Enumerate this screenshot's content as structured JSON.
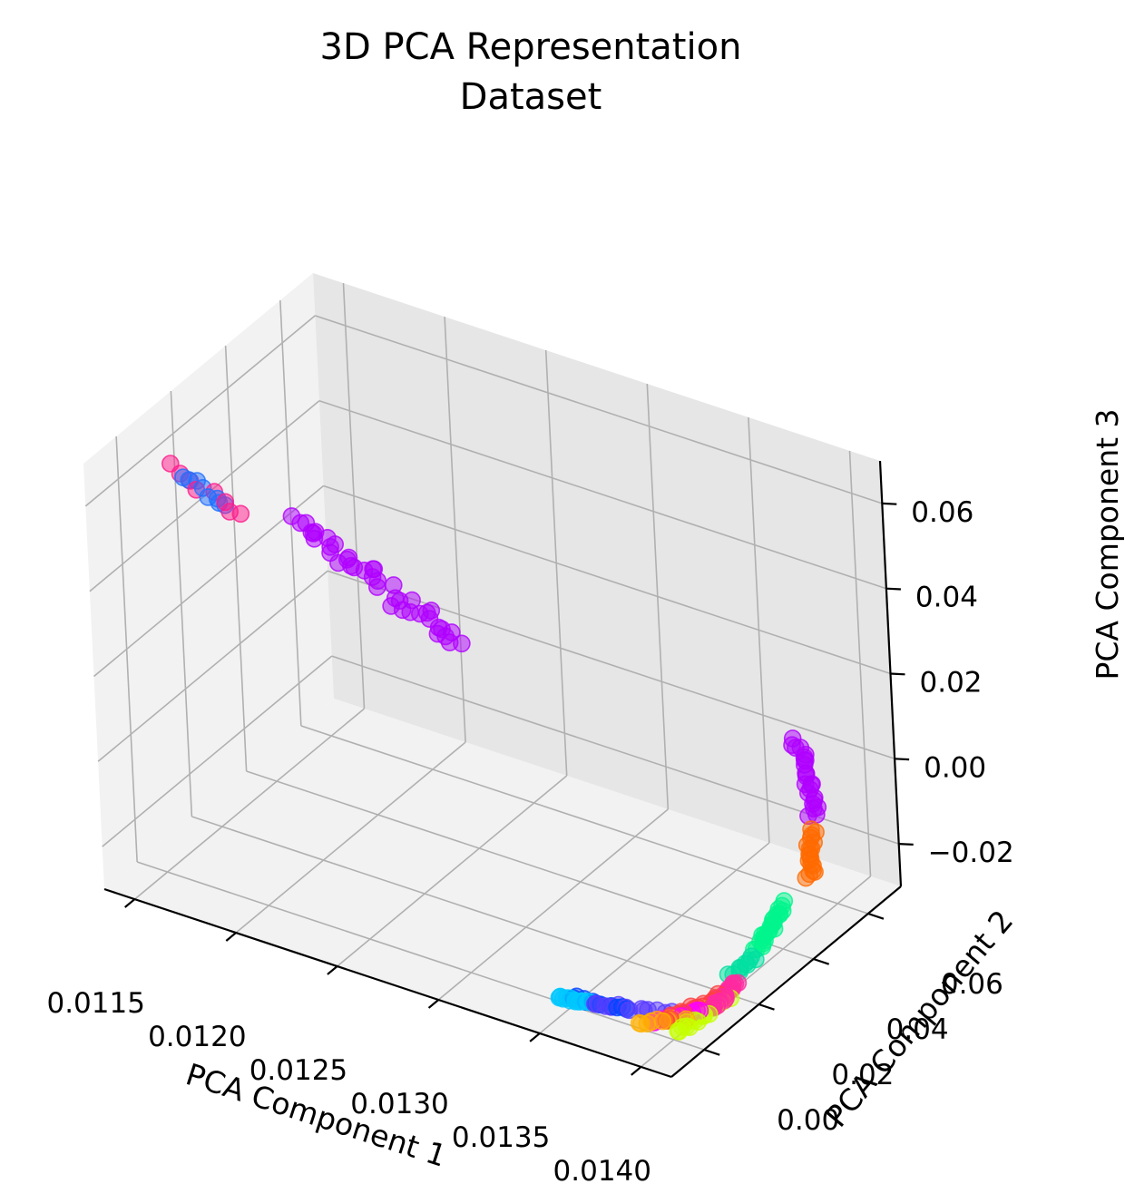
{
  "chart_data": {
    "type": "scatter",
    "title": "3D PCA Representation",
    "subtitle": "Dataset",
    "xlabel": "PCA Component 1",
    "ylabel": "PCA Component 2",
    "zlabel": "PCA Component 3",
    "xticks": [
      "0.0115",
      "0.0120",
      "0.0125",
      "0.0130",
      "0.0135",
      "0.0140"
    ],
    "yticks": [
      "0.00",
      "0.02",
      "0.04",
      "0.06"
    ],
    "zticks": [
      "−0.02",
      "0.00",
      "0.02",
      "0.04",
      "0.06"
    ],
    "xlim": [
      0.01135,
      0.01415
    ],
    "ylim": [
      -0.012,
      0.072
    ],
    "zlim": [
      -0.03,
      0.07
    ],
    "grid": true,
    "legend": null,
    "marker_alpha": 0.5,
    "clusters": [
      {
        "color": "#b000ff",
        "n": 40,
        "start": [
          0.01225,
          -0.002,
          0.066
        ],
        "end": [
          0.01298,
          0.003,
          0.045
        ],
        "spread": [
          4e-05,
          0.002,
          0.0012
        ]
      },
      {
        "color": "#ff1a8c",
        "n": 8,
        "start": [
          0.01166,
          -0.004,
          0.07
        ],
        "end": [
          0.012,
          -0.002,
          0.063
        ],
        "spread": [
          3e-05,
          0.001,
          0.0008
        ]
      },
      {
        "color": "#1f6fff",
        "n": 8,
        "start": [
          0.01172,
          -0.004,
          0.069
        ],
        "end": [
          0.01192,
          -0.003,
          0.064
        ],
        "spread": [
          3e-05,
          0.001,
          0.0008
        ]
      },
      {
        "color": "#b000ff",
        "n": 24,
        "start": [
          0.01395,
          0.052,
          0.012
        ],
        "end": [
          0.0141,
          0.047,
          -0.001
        ],
        "spread": [
          3e-05,
          0.0012,
          0.0008
        ]
      },
      {
        "color": "#ff6a00",
        "n": 18,
        "start": [
          0.01408,
          0.046,
          -0.004
        ],
        "end": [
          0.01413,
          0.042,
          -0.012
        ],
        "spread": [
          2e-05,
          0.0008,
          0.0006
        ]
      },
      {
        "color": "#00f58c",
        "n": 24,
        "start": [
          0.01412,
          0.033,
          -0.014
        ],
        "end": [
          0.01414,
          0.021,
          -0.018
        ],
        "spread": [
          2e-05,
          0.0007,
          0.0004
        ]
      },
      {
        "color": "#ff2aa0",
        "n": 26,
        "start": [
          0.01411,
          0.006,
          -0.024
        ],
        "end": [
          0.01413,
          0.014,
          -0.022
        ],
        "spread": [
          2e-05,
          0.0006,
          0.0005
        ]
      },
      {
        "color": "#ff4040",
        "n": 16,
        "start": [
          0.01398,
          -0.001,
          -0.025
        ],
        "end": [
          0.01412,
          0.009,
          -0.023
        ],
        "spread": [
          2e-05,
          0.0006,
          0.0004
        ]
      },
      {
        "color": "#ff00ff",
        "n": 14,
        "start": [
          0.01392,
          -0.002,
          -0.026
        ],
        "end": [
          0.01408,
          0.004,
          -0.024
        ],
        "spread": [
          2e-05,
          0.0006,
          0.0004
        ]
      },
      {
        "color": "#ffb000",
        "n": 14,
        "start": [
          0.01388,
          -0.004,
          -0.026
        ],
        "end": [
          0.01404,
          0.002,
          -0.025
        ],
        "spread": [
          2e-05,
          0.0006,
          0.0004
        ]
      },
      {
        "color": "#5a3cff",
        "n": 14,
        "start": [
          0.01366,
          -0.004,
          -0.025
        ],
        "end": [
          0.014,
          0.002,
          -0.025
        ],
        "spread": [
          2e-05,
          0.0006,
          0.0004
        ]
      },
      {
        "color": "#0044ff",
        "n": 12,
        "start": [
          0.01356,
          -0.004,
          -0.025
        ],
        "end": [
          0.0138,
          -0.002,
          -0.025
        ],
        "spread": [
          2e-05,
          0.0005,
          0.0004
        ]
      },
      {
        "color": "#00c8ff",
        "n": 14,
        "start": [
          0.0135,
          -0.005,
          -0.025
        ],
        "end": [
          0.01364,
          -0.004,
          -0.025
        ],
        "spread": [
          1e-05,
          0.0005,
          0.0003
        ]
      },
      {
        "color": "#c6ff00",
        "n": 22,
        "start": [
          0.01404,
          -0.001,
          -0.027
        ],
        "end": [
          0.01413,
          0.011,
          -0.024
        ],
        "spread": [
          2e-05,
          0.0008,
          0.0005
        ]
      },
      {
        "color": "#00e0a0",
        "n": 10,
        "start": [
          0.0141,
          0.014,
          -0.021
        ],
        "end": [
          0.01414,
          0.02,
          -0.019
        ],
        "spread": [
          2e-05,
          0.0006,
          0.0004
        ]
      }
    ]
  }
}
